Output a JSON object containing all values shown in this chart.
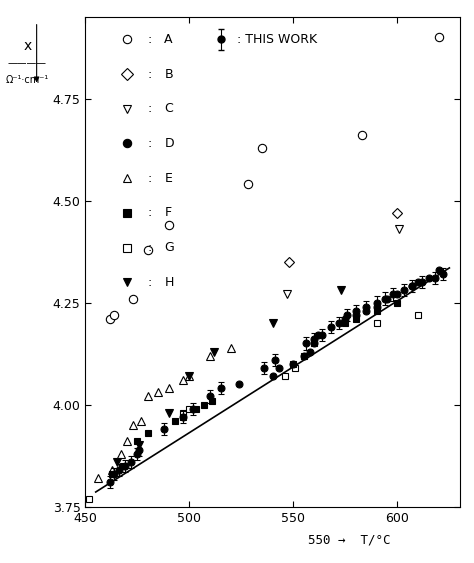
{
  "xlim": [
    450,
    630
  ],
  "ylim": [
    3.75,
    4.95
  ],
  "xticks": [
    450,
    500,
    550,
    600
  ],
  "yticks": [
    3.75,
    4.0,
    4.25,
    4.5,
    4.75
  ],
  "bg_color": "#ffffff",
  "series_A": {
    "label": "A",
    "marker": "o",
    "facecolor": "white",
    "edgecolor": "black",
    "linewidth": 0.8,
    "markersize": 6,
    "x": [
      462,
      464,
      473,
      480,
      490,
      528,
      535,
      583,
      620
    ],
    "y": [
      4.21,
      4.22,
      4.26,
      4.38,
      4.44,
      4.54,
      4.63,
      4.66,
      4.9
    ]
  },
  "series_B": {
    "label": "B",
    "marker": "D",
    "facecolor": "white",
    "edgecolor": "black",
    "linewidth": 0.8,
    "markersize": 5,
    "x": [
      548,
      600
    ],
    "y": [
      4.35,
      4.47
    ]
  },
  "series_C": {
    "label": "C",
    "marker": "v",
    "facecolor": "white",
    "edgecolor": "black",
    "linewidth": 0.8,
    "markersize": 6,
    "x": [
      547,
      601
    ],
    "y": [
      4.27,
      4.43
    ]
  },
  "series_D": {
    "label": "D",
    "marker": "o",
    "facecolor": "black",
    "edgecolor": "black",
    "linewidth": 0.8,
    "markersize": 5,
    "x": [
      524,
      540,
      543,
      550,
      555,
      558,
      560,
      562,
      575,
      580,
      585,
      590,
      595,
      600,
      607,
      610,
      615,
      620
    ],
    "y": [
      4.05,
      4.07,
      4.09,
      4.1,
      4.12,
      4.13,
      4.15,
      4.17,
      4.21,
      4.22,
      4.23,
      4.24,
      4.26,
      4.27,
      4.29,
      4.3,
      4.31,
      4.33
    ]
  },
  "series_E": {
    "label": "E",
    "marker": "^",
    "facecolor": "white",
    "edgecolor": "black",
    "linewidth": 0.8,
    "markersize": 6,
    "x": [
      456,
      463,
      467,
      470,
      473,
      477,
      480,
      485,
      490,
      497,
      500,
      510,
      520
    ],
    "y": [
      3.82,
      3.84,
      3.88,
      3.91,
      3.95,
      3.96,
      4.02,
      4.03,
      4.04,
      4.06,
      4.07,
      4.12,
      4.14
    ]
  },
  "series_F": {
    "label": "F",
    "marker": "s",
    "facecolor": "black",
    "edgecolor": "black",
    "linewidth": 0.8,
    "markersize": 5,
    "x": [
      463,
      468,
      475,
      480,
      493,
      497,
      503,
      507,
      511,
      550,
      555,
      560,
      575,
      580,
      590,
      600
    ],
    "y": [
      3.83,
      3.85,
      3.91,
      3.93,
      3.96,
      3.97,
      3.99,
      4.0,
      4.01,
      4.1,
      4.12,
      4.15,
      4.2,
      4.21,
      4.23,
      4.25
    ]
  },
  "series_G": {
    "label": "G",
    "marker": "s",
    "facecolor": "white",
    "edgecolor": "black",
    "linewidth": 0.8,
    "markersize": 5,
    "x": [
      452,
      497,
      500,
      546,
      551,
      590,
      610
    ],
    "y": [
      3.77,
      3.98,
      3.99,
      4.07,
      4.09,
      4.2,
      4.22
    ]
  },
  "series_H": {
    "label": "H",
    "marker": "v",
    "facecolor": "black",
    "edgecolor": "black",
    "linewidth": 0.8,
    "markersize": 6,
    "x": [
      465,
      476,
      490,
      500,
      512,
      540,
      573
    ],
    "y": [
      3.86,
      3.9,
      3.98,
      4.07,
      4.13,
      4.2,
      4.28
    ]
  },
  "series_TW": {
    "label": "THIS WORK",
    "marker": "o",
    "facecolor": "black",
    "edgecolor": "black",
    "linewidth": 0.8,
    "markersize": 5,
    "x": [
      462,
      464,
      466,
      469,
      472,
      475,
      476,
      488,
      497,
      502,
      510,
      515,
      536,
      541,
      556,
      560,
      564,
      568,
      572,
      576,
      580,
      585,
      590,
      594,
      598,
      603,
      607,
      612,
      618,
      622
    ],
    "y": [
      3.81,
      3.83,
      3.84,
      3.85,
      3.86,
      3.88,
      3.89,
      3.94,
      3.97,
      3.99,
      4.02,
      4.04,
      4.09,
      4.11,
      4.15,
      4.16,
      4.17,
      4.19,
      4.2,
      4.22,
      4.23,
      4.24,
      4.25,
      4.26,
      4.27,
      4.28,
      4.29,
      4.3,
      4.31,
      4.32
    ],
    "yerr": 0.015
  },
  "fit_line": {
    "x": [
      455,
      625
    ],
    "y": [
      3.786,
      4.335
    ],
    "color": "black",
    "linewidth": 1.2
  },
  "legend_items": [
    {
      "marker": "o",
      "facecolor": "white",
      "edgecolor": "black",
      "label": "A"
    },
    {
      "marker": "D",
      "facecolor": "white",
      "edgecolor": "black",
      "label": "B"
    },
    {
      "marker": "v",
      "facecolor": "white",
      "edgecolor": "black",
      "label": "C"
    },
    {
      "marker": "o",
      "facecolor": "black",
      "edgecolor": "black",
      "label": "D"
    },
    {
      "marker": "^",
      "facecolor": "white",
      "edgecolor": "black",
      "label": "E"
    },
    {
      "marker": "s",
      "facecolor": "black",
      "edgecolor": "black",
      "label": "F"
    },
    {
      "marker": "s",
      "facecolor": "white",
      "edgecolor": "black",
      "label": "G"
    },
    {
      "marker": "v",
      "facecolor": "black",
      "edgecolor": "black",
      "label": "H"
    }
  ]
}
